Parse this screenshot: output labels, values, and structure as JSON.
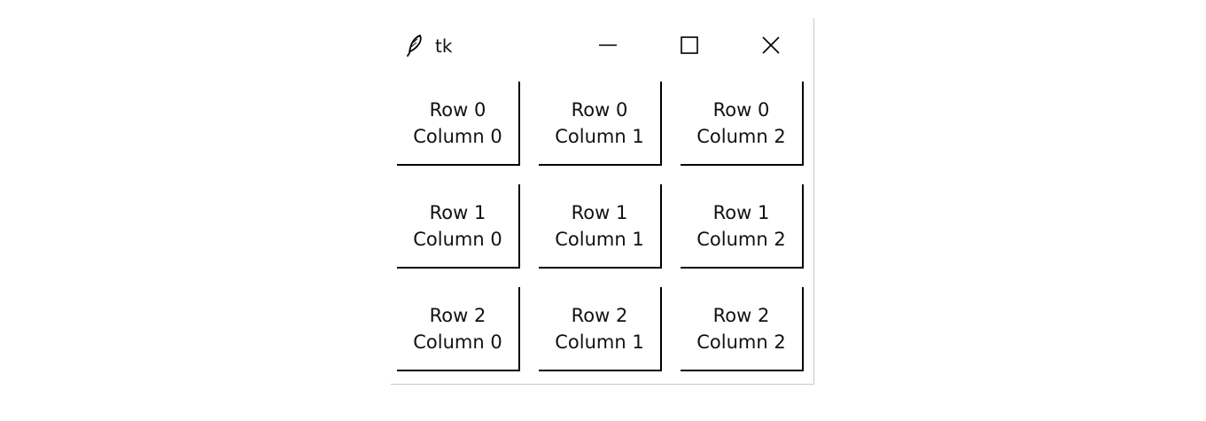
{
  "window": {
    "title": "tk",
    "app_icon": "feather-icon",
    "controls": {
      "minimize_icon": "minimize-icon",
      "maximize_icon": "maximize-icon",
      "close_icon": "close-icon"
    }
  },
  "grid": {
    "cells": [
      {
        "row_label": "Row 0",
        "col_label": "Column 0"
      },
      {
        "row_label": "Row 0",
        "col_label": "Column 1"
      },
      {
        "row_label": "Row 0",
        "col_label": "Column 2"
      },
      {
        "row_label": "Row 1",
        "col_label": "Column 0"
      },
      {
        "row_label": "Row 1",
        "col_label": "Column 1"
      },
      {
        "row_label": "Row 1",
        "col_label": "Column 2"
      },
      {
        "row_label": "Row 2",
        "col_label": "Column 0"
      },
      {
        "row_label": "Row 2",
        "col_label": "Column 1"
      },
      {
        "row_label": "Row 2",
        "col_label": "Column 2"
      }
    ]
  },
  "colors": {
    "background": "#ffffff",
    "text": "#111111",
    "border": "#000000"
  }
}
